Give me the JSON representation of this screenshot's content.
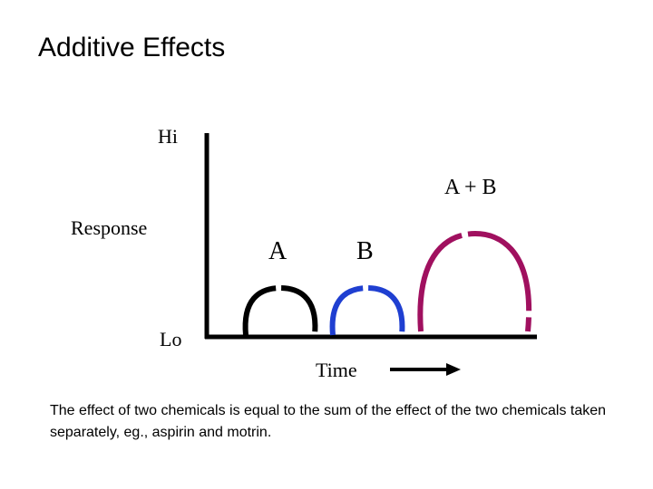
{
  "title": "Additive Effects",
  "axis": {
    "y_hi": "Hi",
    "y_lo": "Lo",
    "y_label": "Response",
    "x_label": "Time"
  },
  "curves": {
    "a": {
      "label": "A",
      "color": "#000000"
    },
    "b": {
      "label": "B",
      "color": "#1f3fd1"
    },
    "ab": {
      "label": "A + B",
      "color": "#a0105f"
    }
  },
  "caption": "The effect of two chemicals is equal to the sum of the effect of the two chemicals taken separately, eg., aspirin and motrin."
}
